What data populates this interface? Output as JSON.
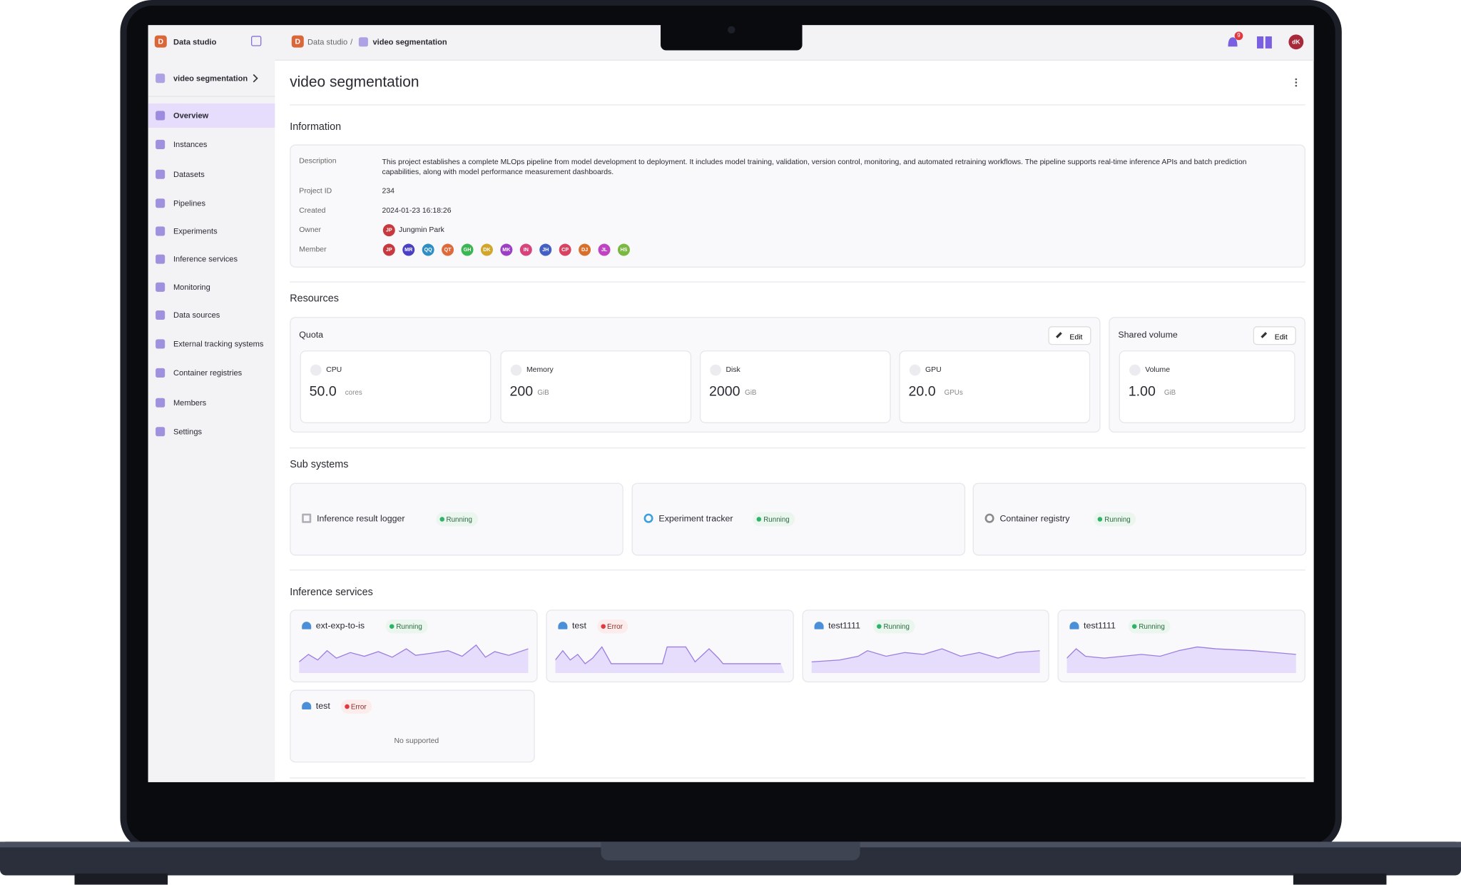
{
  "app": {
    "logo": "D",
    "name": "Data studio",
    "project": "video segmentation"
  },
  "nav": [
    "Overview",
    "Instances",
    "Datasets",
    "Pipelines",
    "Experiments",
    "Inference services",
    "Monitoring",
    "Data sources",
    "External tracking systems",
    "Container registries",
    "Members",
    "Settings"
  ],
  "breadcrumb": {
    "logo": "D",
    "root": "Data studio",
    "separator": "/",
    "current": "video segmentation"
  },
  "topbar": {
    "notifications": "9",
    "user": "dK"
  },
  "header": {
    "title": "video segmentation"
  },
  "information": {
    "title": "Information",
    "rows": [
      {
        "label": "Description",
        "value": "This project establishes a complete MLOps pipeline from model development to deployment. It includes model training, validation, version control, monitoring, and automated retraining workflows. The pipeline supports real-time inference APIs and batch prediction capabilities, along with model performance measurement dashboards."
      },
      {
        "label": "Project ID",
        "value": "234"
      },
      {
        "label": "Created",
        "value": "2024-01-23 16:18:26"
      },
      {
        "label": "Owner",
        "value": "Jungmin Park",
        "avatar": "JP"
      },
      {
        "label": "Member"
      }
    ],
    "members": [
      {
        "initials": "JP",
        "color": "#c8393f"
      },
      {
        "initials": "MR",
        "color": "#4b3fc4"
      },
      {
        "initials": "QQ",
        "color": "#2f8fc4"
      },
      {
        "initials": "QT",
        "color": "#e0693a"
      },
      {
        "initials": "GH",
        "color": "#3cb553"
      },
      {
        "initials": "DK",
        "color": "#d2a52b"
      },
      {
        "initials": "MK",
        "color": "#9c3fc4"
      },
      {
        "initials": "IN",
        "color": "#d8437c"
      },
      {
        "initials": "JH",
        "color": "#4360c4"
      },
      {
        "initials": "CP",
        "color": "#d84361"
      },
      {
        "initials": "DJ",
        "color": "#d8702c"
      },
      {
        "initials": "JL",
        "color": "#c043c4"
      },
      {
        "initials": "HS",
        "color": "#79b841"
      }
    ]
  },
  "resources": {
    "title": "Resources",
    "quota": {
      "title": "Quota",
      "edit": "Edit",
      "items": [
        {
          "label": "CPU",
          "value": "50.0",
          "unit": "cores"
        },
        {
          "label": "Memory",
          "value": "200",
          "unit": "GiB"
        },
        {
          "label": "Disk",
          "value": "2000",
          "unit": "GiB"
        },
        {
          "label": "GPU",
          "value": "20.0",
          "unit": "GPUs"
        }
      ]
    },
    "shared": {
      "title": "Shared volume",
      "edit": "Edit",
      "items": [
        {
          "label": "Volume",
          "value": "1.00",
          "unit": "GiB"
        }
      ]
    }
  },
  "subsystems": {
    "title": "Sub systems",
    "items": [
      {
        "name": "Inference result logger",
        "status": "Running"
      },
      {
        "name": "Experiment tracker",
        "status": "Running"
      },
      {
        "name": "Container registry",
        "status": "Running"
      }
    ]
  },
  "inference": {
    "title": "Inference services",
    "items": [
      {
        "name": "ext-exp-to-is",
        "status": "Running"
      },
      {
        "name": "test",
        "status": "Error"
      },
      {
        "name": "test1111",
        "status": "Running"
      },
      {
        "name": "test1111",
        "status": "Running"
      },
      {
        "name": "test",
        "status": "Error",
        "note": "No supported"
      }
    ]
  }
}
